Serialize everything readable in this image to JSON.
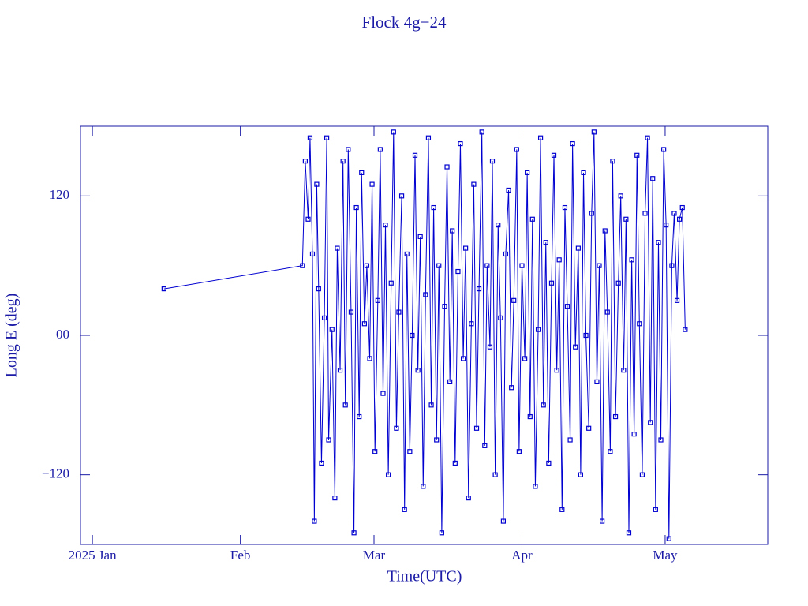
{
  "chart_data": {
    "type": "line",
    "title": "Flock 4g−24",
    "x_label": "Time(UTC)",
    "y_label": "Long E (deg)",
    "xlim": [
      -2.5,
      141.5
    ],
    "xticks": [
      {
        "value": 0,
        "label": "2025 Jan"
      },
      {
        "value": 31,
        "label": "Feb"
      },
      {
        "value": 59,
        "label": "Mar"
      },
      {
        "value": 90,
        "label": "Apr"
      },
      {
        "value": 120,
        "label": "May"
      }
    ],
    "ylim": [
      -180,
      180
    ],
    "yticks": [
      {
        "value": -120,
        "label": "−120"
      },
      {
        "value": 0,
        "label": "00"
      },
      120
    ],
    "grid": false,
    "markers": true,
    "series": [
      {
        "name": "Flock 4g−24",
        "color": "#0000d0",
        "x": [
          15,
          44.0,
          44.6,
          45.2,
          45.6,
          46.1,
          46.5,
          47.0,
          47.4,
          48.0,
          48.6,
          49.1,
          49.5,
          50.2,
          50.8,
          51.3,
          51.9,
          52.5,
          53.0,
          53.6,
          54.2,
          54.8,
          55.3,
          55.9,
          56.4,
          57.0,
          57.5,
          58.1,
          58.6,
          59.2,
          59.8,
          60.3,
          60.9,
          61.4,
          62.0,
          62.6,
          63.1,
          63.7,
          64.2,
          64.8,
          65.4,
          65.9,
          66.5,
          67.0,
          67.6,
          68.2,
          68.7,
          69.3,
          69.8,
          70.4,
          71.0,
          71.5,
          72.1,
          72.6,
          73.2,
          73.8,
          74.3,
          74.9,
          75.4,
          76.0,
          76.6,
          77.1,
          77.7,
          78.2,
          78.8,
          79.4,
          79.9,
          80.5,
          81.0,
          81.6,
          82.2,
          82.7,
          83.3,
          83.8,
          84.4,
          85.0,
          85.5,
          86.1,
          86.6,
          87.2,
          87.8,
          88.3,
          88.9,
          89.4,
          90.0,
          90.6,
          91.1,
          91.7,
          92.2,
          92.8,
          93.4,
          93.9,
          94.5,
          95.0,
          95.6,
          96.2,
          96.7,
          97.3,
          97.8,
          98.4,
          99.0,
          99.5,
          100.1,
          100.6,
          101.2,
          101.8,
          102.3,
          102.9,
          103.4,
          104.0,
          104.6,
          105.1,
          105.7,
          106.2,
          106.8,
          107.4,
          107.9,
          108.5,
          109.0,
          109.6,
          110.2,
          110.7,
          111.3,
          111.8,
          112.4,
          113.0,
          113.5,
          114.1,
          114.6,
          115.2,
          115.8,
          116.3,
          116.9,
          117.4,
          118.0,
          118.6,
          119.1,
          119.7,
          120.2,
          120.8,
          121.4,
          121.9,
          122.5,
          123.0,
          123.6,
          124.2
        ],
        "values": [
          40,
          60,
          150,
          100,
          170,
          70,
          -160,
          130,
          40,
          -110,
          15,
          170,
          -90,
          5,
          -140,
          75,
          -30,
          150,
          -60,
          160,
          20,
          -170,
          110,
          -70,
          140,
          10,
          60,
          -20,
          130,
          -100,
          30,
          160,
          -50,
          95,
          -120,
          45,
          175,
          -80,
          20,
          120,
          -150,
          70,
          -100,
          0,
          155,
          -30,
          85,
          -130,
          35,
          170,
          -60,
          110,
          -90,
          60,
          -170,
          25,
          145,
          -40,
          90,
          -110,
          55,
          165,
          -20,
          75,
          -140,
          10,
          130,
          -80,
          40,
          175,
          -95,
          60,
          -10,
          150,
          -120,
          95,
          15,
          -160,
          70,
          125,
          -45,
          30,
          160,
          -100,
          60,
          -20,
          140,
          -70,
          100,
          -130,
          5,
          170,
          -60,
          80,
          -110,
          45,
          155,
          -30,
          65,
          -150,
          110,
          25,
          -90,
          165,
          -10,
          75,
          -120,
          140,
          0,
          -80,
          105,
          175,
          -40,
          60,
          -160,
          90,
          20,
          -100,
          150,
          -70,
          45,
          120,
          -30,
          100,
          -170,
          65,
          -85,
          155,
          10,
          -120,
          105,
          170,
          -75,
          135,
          -150,
          80,
          -90,
          160,
          95,
          -175,
          60,
          105,
          30,
          100,
          110,
          5
        ]
      }
    ]
  }
}
